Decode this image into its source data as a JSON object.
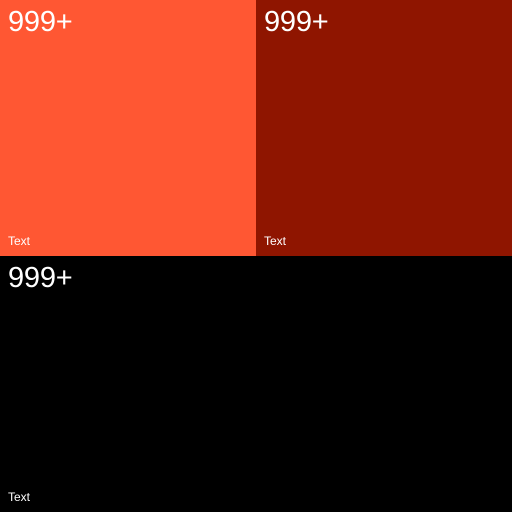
{
  "tiles": [
    {
      "count": "999+",
      "label": "Text",
      "color": "#ff5733"
    },
    {
      "count": "999+",
      "label": "Text",
      "color": "#8f1500"
    },
    {
      "count": "999+",
      "label": "Text",
      "color": "#000000"
    }
  ]
}
